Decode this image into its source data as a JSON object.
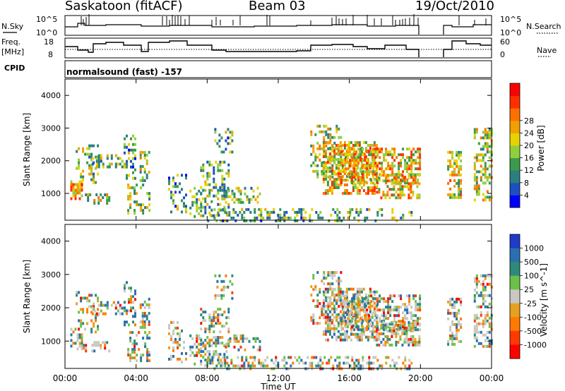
{
  "header": {
    "station": "Saskatoon (fitACF)",
    "beam": "Beam 03",
    "date": "19/Oct/2010"
  },
  "top_panels": {
    "noise_left_label": "N.Sky",
    "noise_right_label": "N.Search",
    "noise_ticks_left": [
      "10^5",
      "10^0"
    ],
    "noise_ticks_right": [
      "10^5",
      "10^0"
    ],
    "freq_label_1": "Freq.",
    "freq_label_2": "[MHz]",
    "freq_ticks_left": [
      "18",
      "8"
    ],
    "nave_label": "Nave",
    "nave_ticks_right": [
      "60",
      "0"
    ],
    "cpid_label": "CPID",
    "cpid_text": "normalsound (fast) -157"
  },
  "chart_data": [
    {
      "type": "heatmap",
      "name": "power-panel",
      "ylabel": "Slant Range [km]",
      "xlabel": "Time UT",
      "x_ticks": [
        "00:00",
        "04:00",
        "08:00",
        "12:00",
        "16:00",
        "20:00",
        "00:00"
      ],
      "y_ticks": [
        "1000",
        "2000",
        "3000",
        "4000"
      ],
      "xlim_hours": [
        0,
        24
      ],
      "ylim_km": [
        180,
        4500
      ],
      "colorbar": {
        "label": "Power [dB]",
        "ticks": [
          "4",
          "8",
          "12",
          "16",
          "20",
          "24",
          "28"
        ],
        "colors": [
          "#0000ff",
          "#1e4fbf",
          "#2a7f7f",
          "#3c9a4a",
          "#8fcf3f",
          "#e6d200",
          "#f0a000",
          "#ff7000",
          "#ff3000",
          "#ff0000"
        ]
      }
    },
    {
      "type": "heatmap",
      "name": "velocity-panel",
      "ylabel": "Slant Range [km]",
      "xlabel": "Time UT",
      "x_ticks": [
        "00:00",
        "04:00",
        "08:00",
        "12:00",
        "16:00",
        "20:00",
        "00:00"
      ],
      "y_ticks": [
        "1000",
        "2000",
        "3000",
        "4000"
      ],
      "xlim_hours": [
        0,
        24
      ],
      "ylim_km": [
        180,
        4500
      ],
      "colorbar": {
        "label": "Velocity [m s^-1]",
        "ticks": [
          "1000",
          "500",
          "100",
          "25",
          "-25",
          "-100",
          "-500",
          "-1000"
        ],
        "colors": [
          "#1e3cc8",
          "#2a6fb0",
          "#2e8a7a",
          "#6cc04a",
          "#c8c8c0",
          "#e8a020",
          "#ff7a00",
          "#ff3a00",
          "#ff0000"
        ]
      }
    }
  ],
  "x_axis_title": "Time UT"
}
